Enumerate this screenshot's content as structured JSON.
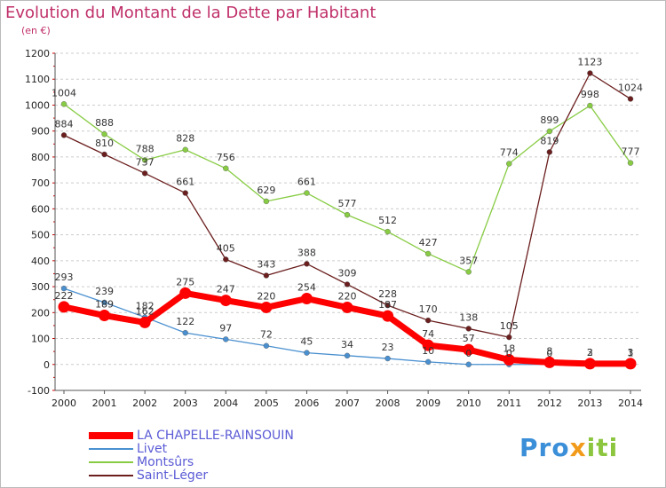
{
  "chart_data": {
    "type": "line",
    "title": "Evolution du Montant de la Dette par Habitant",
    "unit_label": "(en €)",
    "xlabel": "",
    "ylabel": "",
    "x": [
      "2000",
      "2001",
      "2002",
      "2003",
      "2004",
      "2005",
      "2006",
      "2007",
      "2008",
      "2009",
      "2010",
      "2011",
      "2012",
      "2013",
      "2014"
    ],
    "ylim": [
      -100,
      1200
    ],
    "yticks": [
      "-100",
      "0",
      "100",
      "200",
      "300",
      "400",
      "500",
      "600",
      "700",
      "800",
      "900",
      "1000",
      "1100",
      "1200"
    ],
    "grid": "horizontal-dashed",
    "legend_position": "bottom-left",
    "series": [
      {
        "name": "LA CHAPELLE-RAINSOUIN",
        "color": "#ff0000",
        "values": [
          222,
          189,
          162,
          275,
          247,
          220,
          254,
          220,
          187,
          74,
          57,
          18,
          8,
          3,
          3
        ],
        "labels": [
          "222",
          "189",
          "162",
          "275",
          "247",
          "220",
          "254",
          "220",
          "187",
          "74",
          "57",
          "18",
          "8",
          "3",
          "3"
        ]
      },
      {
        "name": "Livet",
        "color": "#4a90d0",
        "values": [
          293,
          239,
          182,
          122,
          97,
          72,
          45,
          34,
          23,
          10,
          0,
          0,
          0,
          2,
          1
        ],
        "labels": [
          "293",
          "239",
          "182",
          "122",
          "97",
          "72",
          "45",
          "34",
          "23",
          "10",
          "0",
          "0",
          "0",
          "2",
          "1"
        ]
      },
      {
        "name": "Montsûrs",
        "color": "#88cc44",
        "values": [
          1004,
          888,
          788,
          828,
          756,
          629,
          661,
          577,
          512,
          427,
          357,
          774,
          899,
          998,
          777
        ],
        "labels": [
          "1004",
          "888",
          "788",
          "828",
          "756",
          "629",
          "661",
          "577",
          "512",
          "427",
          "357",
          "774",
          "899",
          "998",
          "777"
        ]
      },
      {
        "name": "Saint-Léger",
        "color": "#6b1e1e",
        "values": [
          884,
          810,
          737,
          661,
          405,
          343,
          388,
          309,
          228,
          170,
          138,
          105,
          819,
          1123,
          1024
        ],
        "labels": [
          "884",
          "810",
          "737",
          "661",
          "405",
          "343",
          "388",
          "309",
          "228",
          "170",
          "138",
          "105",
          "819",
          "1123",
          "1024"
        ]
      }
    ]
  },
  "logo": {
    "p1": "Pro",
    "p2": "x",
    "p3": "iti"
  }
}
